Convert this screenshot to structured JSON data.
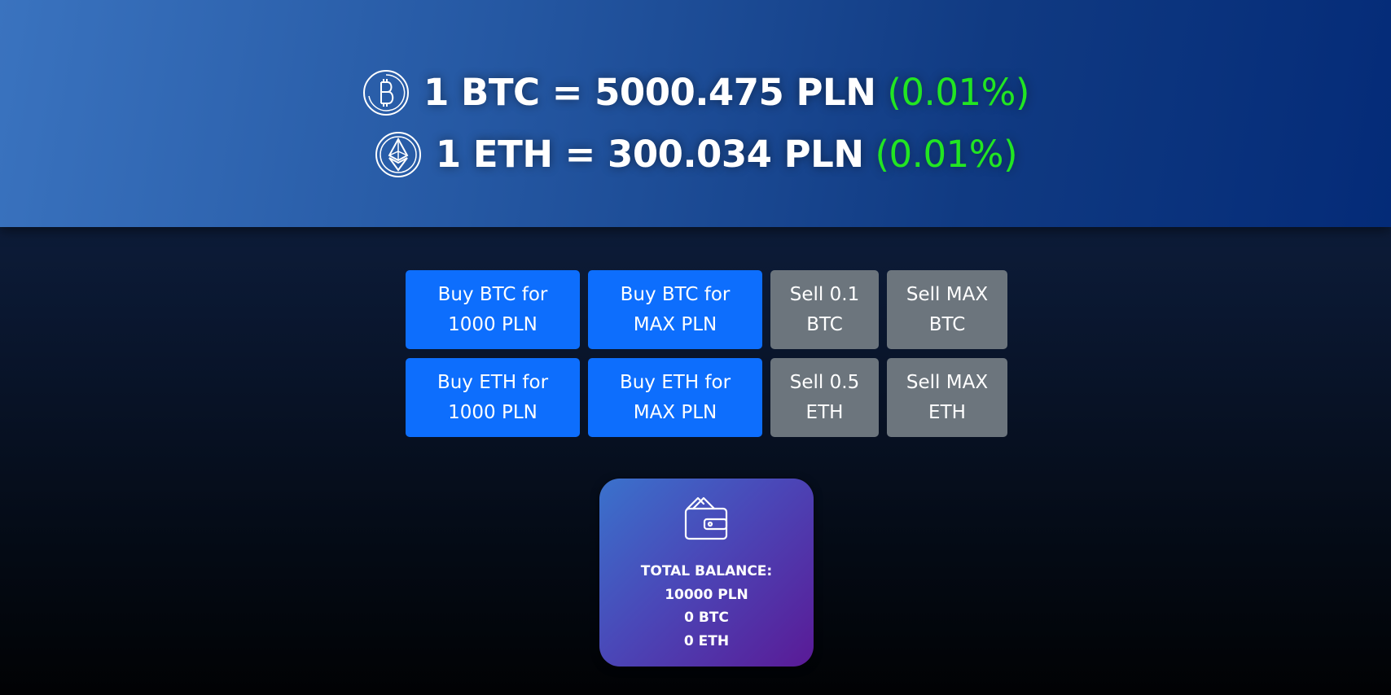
{
  "rates": [
    {
      "icon": "bitcoin-icon",
      "text": "1 BTC = 5000.475 PLN",
      "change": "(0.01%)"
    },
    {
      "icon": "ethereum-icon",
      "text": "1 ETH = 300.034 PLN",
      "change": "(0.01%)"
    }
  ],
  "actions": {
    "btc": {
      "buy_1000": [
        "Buy BTC for",
        "1000 PLN"
      ],
      "buy_max": [
        "Buy BTC for",
        "MAX PLN"
      ],
      "sell_fixed": [
        "Sell 0.1",
        "BTC"
      ],
      "sell_max": [
        "Sell MAX",
        "BTC"
      ]
    },
    "eth": {
      "buy_1000": [
        "Buy ETH for",
        "1000 PLN"
      ],
      "buy_max": [
        "Buy ETH for",
        "MAX PLN"
      ],
      "sell_fixed": [
        "Sell 0.5",
        "ETH"
      ],
      "sell_max": [
        "Sell MAX",
        "ETH"
      ]
    }
  },
  "wallet": {
    "icon": "wallet-icon",
    "title": "TOTAL BALANCE:",
    "pln": "10000 PLN",
    "btc": "0 BTC",
    "eth": "0 ETH"
  },
  "colors": {
    "buy": "#0d6efd",
    "sell": "#6c757d",
    "positive_change": "#22e622"
  }
}
